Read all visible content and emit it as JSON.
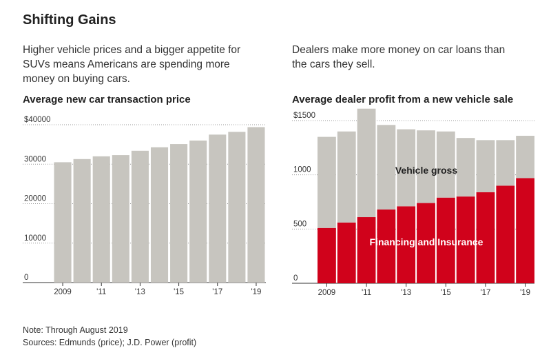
{
  "title": "Shifting Gains",
  "left_desc": "Higher vehicle prices and a bigger appetite for SUVs means Americans are spending more money on buying cars.",
  "right_desc": "Dealers make more money on car loans than the cars they sell.",
  "note": "Note: Through August 2019",
  "sources": "Sources: Edmunds (price); J.D. Power (profit)",
  "colors": {
    "gray": "#c7c5bf",
    "red": "#d0021b",
    "axis": "#333333"
  },
  "chart_data": [
    {
      "type": "bar",
      "title": "Average new car transaction price",
      "x": [
        2009,
        2010,
        2011,
        2012,
        2013,
        2014,
        2015,
        2016,
        2017,
        2018,
        2019
      ],
      "x_tick_labels": {
        "2009": "2009",
        "2011": "'11",
        "2013": "'13",
        "2015": "'15",
        "2017": "'17",
        "2019": "'19"
      },
      "values": [
        30500,
        31300,
        32000,
        32300,
        33400,
        34300,
        35100,
        36000,
        37500,
        38200,
        39400
      ],
      "ylim": [
        0,
        40000
      ],
      "y_ticks": [
        0,
        10000,
        20000,
        30000,
        40000
      ],
      "y_tick_labels": [
        "0",
        "10000",
        "20000",
        "30000",
        "$40000"
      ],
      "grid": true
    },
    {
      "type": "bar",
      "stacked": true,
      "title": "Average dealer profit from a new vehicle sale",
      "x": [
        2009,
        2010,
        2011,
        2012,
        2013,
        2014,
        2015,
        2016,
        2017,
        2018,
        2019
      ],
      "x_tick_labels": {
        "2009": "2009",
        "2011": "'11",
        "2013": "'13",
        "2015": "'15",
        "2017": "'17",
        "2019": "'19"
      },
      "series": [
        {
          "name": "Financing and Insurance",
          "color": "#d0021b",
          "values": [
            510,
            560,
            610,
            680,
            710,
            740,
            790,
            800,
            840,
            900,
            970
          ]
        },
        {
          "name": "Vehicle gross",
          "color": "#c7c5bf",
          "values": [
            840,
            840,
            1000,
            780,
            710,
            670,
            610,
            540,
            480,
            420,
            390
          ]
        }
      ],
      "ylim": [
        0,
        1500
      ],
      "y_ticks": [
        0,
        500,
        1000,
        1500
      ],
      "y_tick_labels": [
        "0",
        "500",
        "1000",
        "$1500"
      ],
      "grid": true
    }
  ]
}
